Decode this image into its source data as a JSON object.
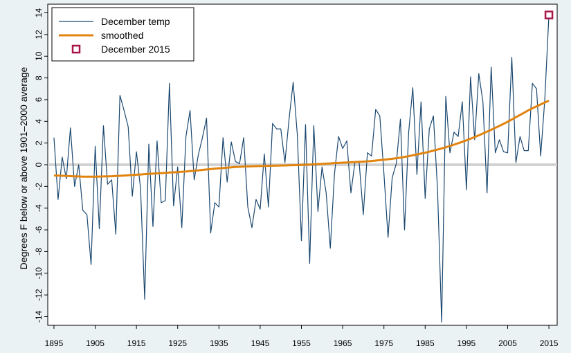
{
  "chart_data": {
    "type": "line",
    "title": "",
    "xlabel": "",
    "ylabel": "Degrees F below or above 1901–2000 average",
    "xlim": [
      1893.5,
      2017
    ],
    "ylim": [
      -14.8,
      14.8
    ],
    "xticks": [
      1895,
      1905,
      1915,
      1925,
      1935,
      1945,
      1955,
      1965,
      1975,
      1985,
      1995,
      2005,
      2015
    ],
    "yticks": [
      -14,
      -12,
      -10,
      -8,
      -6,
      -4,
      -2,
      0,
      2,
      4,
      6,
      8,
      10,
      12,
      14
    ],
    "reference_line": 0,
    "grid": false,
    "legend_position": "top-left",
    "x": [
      1895,
      1896,
      1897,
      1898,
      1899,
      1900,
      1901,
      1902,
      1903,
      1904,
      1905,
      1906,
      1907,
      1908,
      1909,
      1910,
      1911,
      1912,
      1913,
      1914,
      1915,
      1916,
      1917,
      1918,
      1919,
      1920,
      1921,
      1922,
      1923,
      1924,
      1925,
      1926,
      1927,
      1928,
      1929,
      1930,
      1931,
      1932,
      1933,
      1934,
      1935,
      1936,
      1937,
      1938,
      1939,
      1940,
      1941,
      1942,
      1943,
      1944,
      1945,
      1946,
      1947,
      1948,
      1949,
      1950,
      1951,
      1952,
      1953,
      1954,
      1955,
      1956,
      1957,
      1958,
      1959,
      1960,
      1961,
      1962,
      1963,
      1964,
      1965,
      1966,
      1967,
      1968,
      1969,
      1970,
      1971,
      1972,
      1973,
      1974,
      1975,
      1976,
      1977,
      1978,
      1979,
      1980,
      1981,
      1982,
      1983,
      1984,
      1985,
      1986,
      1987,
      1988,
      1989,
      1990,
      1991,
      1992,
      1993,
      1994,
      1995,
      1996,
      1997,
      1998,
      1999,
      2000,
      2001,
      2002,
      2003,
      2004,
      2005,
      2006,
      2007,
      2008,
      2009,
      2010,
      2011,
      2012,
      2013,
      2014,
      2015
    ],
    "series": [
      {
        "name": "December temp",
        "color": "#1a476f",
        "values": [
          2.5,
          -3.2,
          0.7,
          -1.3,
          3.4,
          -2.0,
          0.0,
          -4.2,
          -4.6,
          -9.2,
          1.7,
          -5.9,
          3.6,
          -1.8,
          -1.4,
          -6.4,
          6.4,
          5.0,
          3.5,
          -2.9,
          1.2,
          -2.2,
          -12.4,
          1.9,
          -5.7,
          2.2,
          -3.5,
          -3.3,
          7.5,
          -3.8,
          -0.2,
          -5.8,
          2.6,
          5.0,
          -1.4,
          0.9,
          2.5,
          4.3,
          -6.3,
          -3.5,
          -3.9,
          2.5,
          -1.6,
          2.1,
          0.3,
          0.1,
          2.5,
          -3.9,
          -5.8,
          -3.2,
          -4.1,
          1.0,
          -3.9,
          3.8,
          3.3,
          3.3,
          0.2,
          4.2,
          7.6,
          2.8,
          -7.0,
          3.7,
          -9.1,
          3.6,
          -4.3,
          -0.2,
          -2.6,
          -7.7,
          -0.9,
          2.6,
          1.5,
          2.2,
          -2.6,
          0.3,
          0.2,
          -4.6,
          1.1,
          0.8,
          5.1,
          4.5,
          -0.8,
          -6.7,
          -1.2,
          0.1,
          4.2,
          -6.0,
          3.0,
          7.1,
          -0.9,
          5.8,
          -3.1,
          3.3,
          4.5,
          -2.3,
          -14.5,
          6.3,
          1.1,
          3.0,
          2.6,
          5.8,
          -2.3,
          8.1,
          2.3,
          8.4,
          5.8,
          -2.6,
          9.0,
          1.1,
          2.3,
          1.2,
          1.1,
          9.9,
          0.2,
          2.6,
          1.3,
          1.3,
          7.5,
          7.0,
          0.8,
          6.0,
          13.8
        ]
      },
      {
        "name": "smoothed",
        "color": "#e1830d",
        "values": [
          -1.0,
          -1.0,
          -1.02,
          -1.03,
          -1.05,
          -1.07,
          -1.08,
          -1.1,
          -1.1,
          -1.1,
          -1.1,
          -1.09,
          -1.08,
          -1.07,
          -1.06,
          -1.04,
          -1.02,
          -1.0,
          -0.97,
          -0.95,
          -0.92,
          -0.9,
          -0.87,
          -0.84,
          -0.82,
          -0.8,
          -0.77,
          -0.75,
          -0.72,
          -0.7,
          -0.68,
          -0.65,
          -0.62,
          -0.58,
          -0.55,
          -0.52,
          -0.48,
          -0.44,
          -0.4,
          -0.36,
          -0.33,
          -0.3,
          -0.27,
          -0.24,
          -0.21,
          -0.19,
          -0.17,
          -0.15,
          -0.14,
          -0.13,
          -0.12,
          -0.11,
          -0.1,
          -0.09,
          -0.08,
          -0.07,
          -0.06,
          -0.05,
          -0.04,
          -0.03,
          -0.01,
          0.0,
          0.02,
          0.04,
          0.06,
          0.08,
          0.1,
          0.12,
          0.15,
          0.17,
          0.19,
          0.21,
          0.23,
          0.25,
          0.27,
          0.29,
          0.31,
          0.34,
          0.38,
          0.42,
          0.46,
          0.5,
          0.55,
          0.6,
          0.65,
          0.72,
          0.79,
          0.87,
          0.95,
          1.03,
          1.11,
          1.2,
          1.3,
          1.4,
          1.5,
          1.61,
          1.73,
          1.85,
          1.98,
          2.11,
          2.25,
          2.4,
          2.55,
          2.71,
          2.88,
          3.05,
          3.22,
          3.4,
          3.58,
          3.77,
          3.96,
          4.17,
          4.38,
          4.59,
          4.8,
          5.01,
          5.2,
          5.38,
          5.56,
          5.73,
          5.9
        ]
      }
    ],
    "highlight": {
      "name": "December 2015",
      "x": 2015,
      "y": 13.8,
      "color": "#a8164a"
    }
  }
}
